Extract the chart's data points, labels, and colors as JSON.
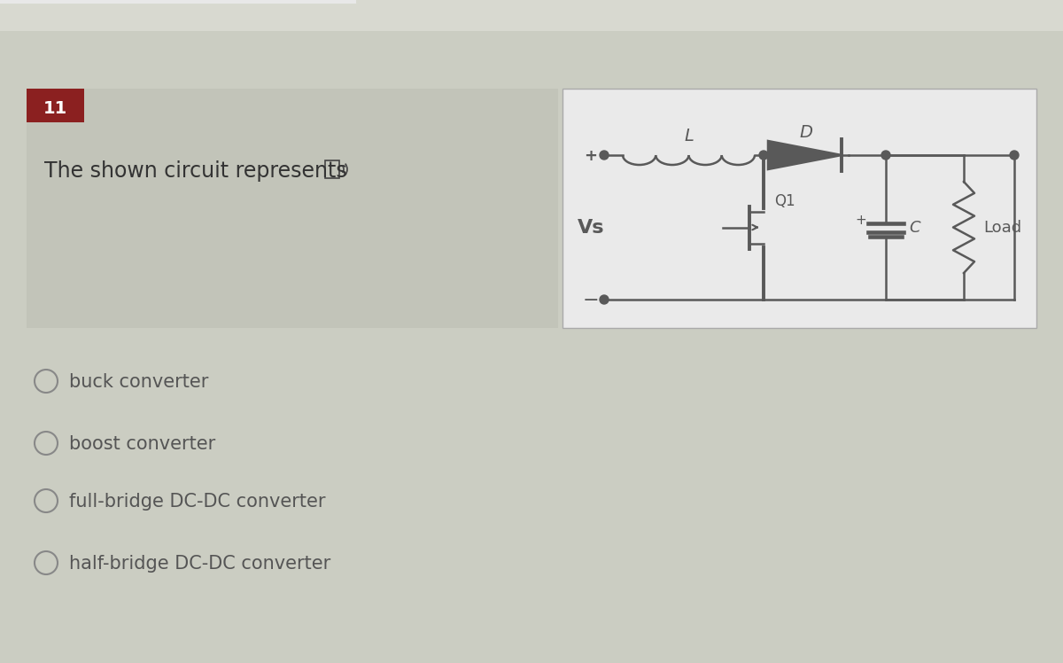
{
  "question_number": "11",
  "question_number_bg": "#8B2020",
  "question_number_fg": "#FFFFFF",
  "question_text": "The shown circuit represents",
  "options": [
    "buck converter",
    "boost converter",
    "full-bridge DC-DC converter",
    "half-bridge DC-DC converter"
  ],
  "bg_color": "#CBCDC2",
  "left_panel_bg": "#C2C4B9",
  "circuit_panel_bg": "#EAEAEA",
  "circuit_color": "#595959",
  "text_color": "#444444",
  "question_text_color": "#333333",
  "option_text_color": "#555555",
  "border_color": "#AAAAAA",
  "top_bar_color": "#E0E0E0"
}
